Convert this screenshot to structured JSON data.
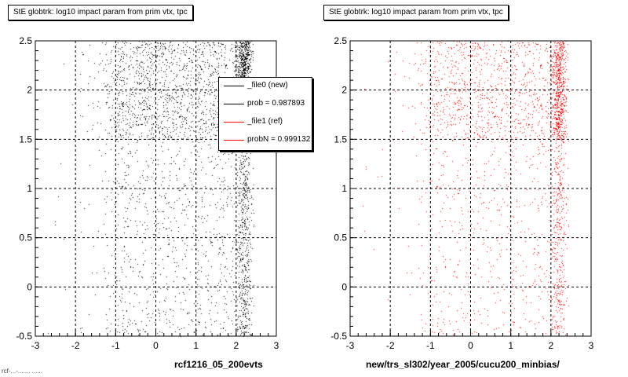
{
  "chart_data": [
    {
      "type": "scatter",
      "title": "StE globtrk: log10 impact param from prim vtx, tpc",
      "xlabel": "rcf1216_05_200evts",
      "ylabel": "",
      "xlim": [
        -3,
        3
      ],
      "ylim": [
        -0.5,
        2.5
      ],
      "x_ticks": [
        "-3",
        "-2",
        "-1",
        "0",
        "1",
        "2",
        "3"
      ],
      "y_ticks": [
        "-0.5",
        "0",
        "0.5",
        "1",
        "1.5",
        "2",
        "2.5"
      ],
      "grid": true,
      "series": [
        {
          "name": "_file0 (new)",
          "color": "#000000",
          "x_range": [
            -1.9,
            2.45
          ],
          "x_peak": 2.2,
          "y_range": [
            -0.5,
            2.5
          ],
          "dense_band_y": [
            1.5,
            2.5
          ]
        }
      ],
      "legend": {
        "placement": "top-right",
        "entries": [
          {
            "label": "_file0 (new)",
            "color": "#000000"
          },
          {
            "label": "prob = 0.987893",
            "color": "#000000"
          },
          {
            "label": "_file1 (ref)",
            "color": "#ff0000"
          },
          {
            "label": "probN = 0.999132",
            "color": "#ff0000"
          }
        ]
      }
    },
    {
      "type": "scatter",
      "title": "StE globtrk: log10 impact param from prim vtx, tpc",
      "xlabel": "new/trs_sl302/year_2005/cucu200_minbias/",
      "ylabel": "",
      "xlim": [
        -3,
        3
      ],
      "ylim": [
        -0.5,
        2.5
      ],
      "x_ticks": [
        "-3",
        "-2",
        "-1",
        "0",
        "1",
        "2",
        "3"
      ],
      "y_ticks": [
        "-0.5",
        "0",
        "0.5",
        "1",
        "1.5",
        "2",
        "2.5"
      ],
      "grid": true,
      "series": [
        {
          "name": "_file1 (ref)",
          "color": "#ff0000",
          "x_range": [
            -1.9,
            2.45
          ],
          "x_peak": 2.2,
          "y_range": [
            -0.5,
            2.5
          ],
          "dense_band_y": [
            1.5,
            2.5
          ]
        }
      ]
    }
  ],
  "footer": "rcf-...-....... ......"
}
